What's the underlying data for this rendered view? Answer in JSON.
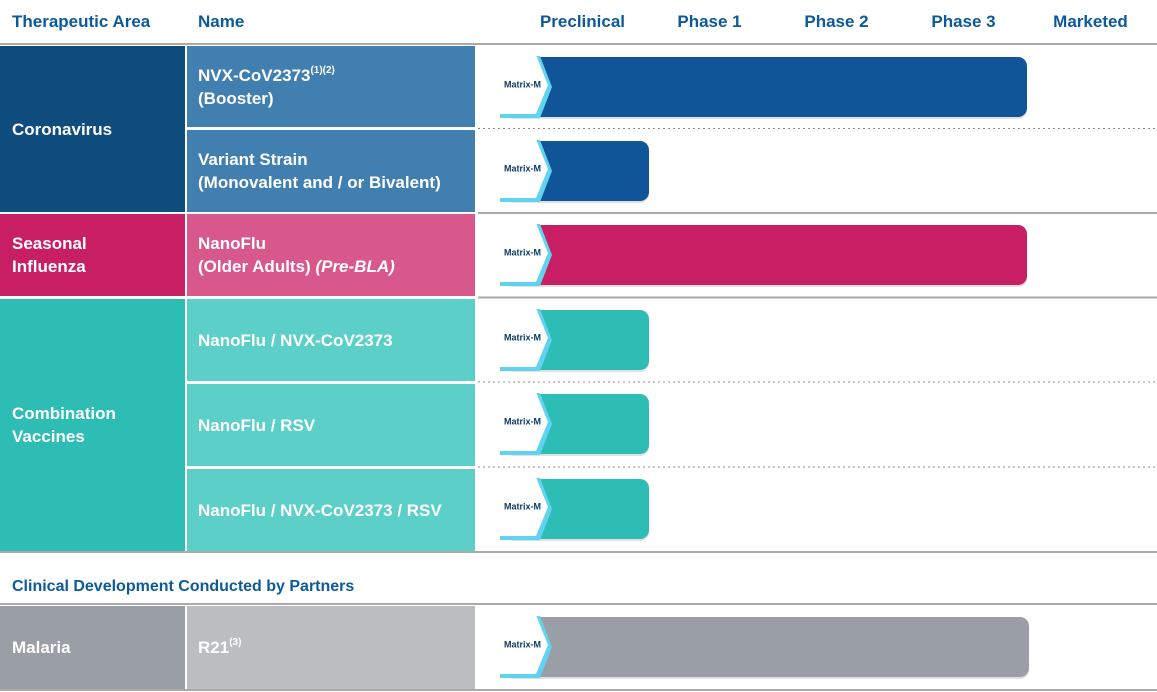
{
  "header": {
    "area": "Therapeutic Area",
    "name": "Name",
    "stages": [
      "Preclinical",
      "Phase 1",
      "Phase 2",
      "Phase 3",
      "Marketed"
    ]
  },
  "badge": "Matrix-M",
  "groups": [
    {
      "area": "Coronavirus",
      "rows": [
        {
          "name": "NVX-CoV2373",
          "sup": "(1)(2)",
          "line2": "(Booster)"
        },
        {
          "name": "Variant Strain",
          "line2": "(Monovalent and / or Bivalent)"
        }
      ]
    },
    {
      "area": "Seasonal Influenza",
      "rows": [
        {
          "name": "NanoFlu",
          "line2": "(Older Adults)",
          "italic": "(Pre-BLA)"
        }
      ]
    },
    {
      "area": "Combination Vaccines",
      "rows": [
        {
          "name": "NanoFlu / NVX-CoV2373"
        },
        {
          "name": "NanoFlu / RSV"
        },
        {
          "name": "NanoFlu / NVX-CoV2373 / RSV"
        }
      ]
    }
  ],
  "partners": {
    "title": "Clinical Development Conducted by Partners",
    "area": "Malaria",
    "name": "R21",
    "sup": "(3)"
  }
}
